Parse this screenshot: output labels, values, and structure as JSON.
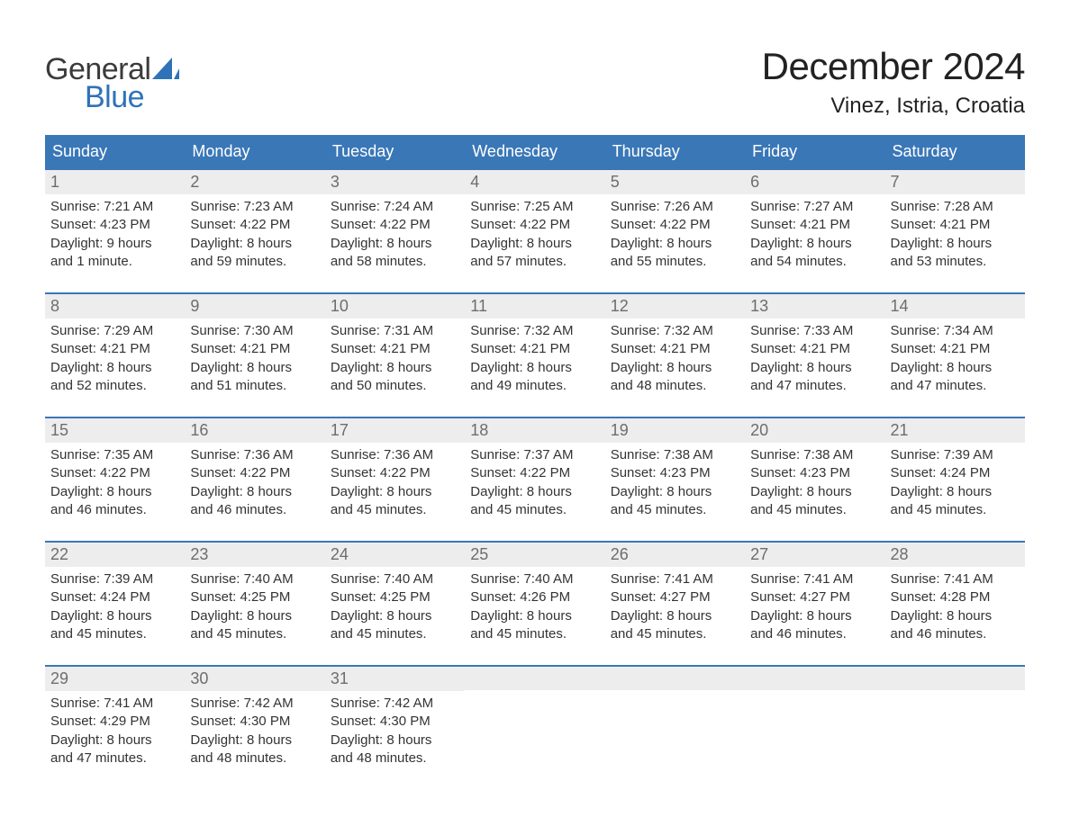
{
  "brand": {
    "word1": "General",
    "word2": "Blue"
  },
  "title": "December 2024",
  "location": "Vinez, Istria, Croatia",
  "colors": {
    "header_bg": "#3a77b7",
    "header_text": "#ffffff",
    "daynum_bg": "#ededed",
    "daynum_text": "#6d6d6d",
    "body_text": "#333333",
    "week_border": "#3a77b7",
    "page_bg": "#ffffff",
    "logo_grey": "#3b3b3b",
    "logo_blue": "#2f72b8"
  },
  "typography": {
    "title_fontsize": 42,
    "location_fontsize": 24,
    "weekday_fontsize": 18,
    "daynum_fontsize": 18,
    "body_fontsize": 15,
    "logo_fontsize": 34
  },
  "weekdays": [
    "Sunday",
    "Monday",
    "Tuesday",
    "Wednesday",
    "Thursday",
    "Friday",
    "Saturday"
  ],
  "weeks": [
    [
      {
        "n": "1",
        "sunrise": "Sunrise: 7:21 AM",
        "sunset": "Sunset: 4:23 PM",
        "d1": "Daylight: 9 hours",
        "d2": "and 1 minute."
      },
      {
        "n": "2",
        "sunrise": "Sunrise: 7:23 AM",
        "sunset": "Sunset: 4:22 PM",
        "d1": "Daylight: 8 hours",
        "d2": "and 59 minutes."
      },
      {
        "n": "3",
        "sunrise": "Sunrise: 7:24 AM",
        "sunset": "Sunset: 4:22 PM",
        "d1": "Daylight: 8 hours",
        "d2": "and 58 minutes."
      },
      {
        "n": "4",
        "sunrise": "Sunrise: 7:25 AM",
        "sunset": "Sunset: 4:22 PM",
        "d1": "Daylight: 8 hours",
        "d2": "and 57 minutes."
      },
      {
        "n": "5",
        "sunrise": "Sunrise: 7:26 AM",
        "sunset": "Sunset: 4:22 PM",
        "d1": "Daylight: 8 hours",
        "d2": "and 55 minutes."
      },
      {
        "n": "6",
        "sunrise": "Sunrise: 7:27 AM",
        "sunset": "Sunset: 4:21 PM",
        "d1": "Daylight: 8 hours",
        "d2": "and 54 minutes."
      },
      {
        "n": "7",
        "sunrise": "Sunrise: 7:28 AM",
        "sunset": "Sunset: 4:21 PM",
        "d1": "Daylight: 8 hours",
        "d2": "and 53 minutes."
      }
    ],
    [
      {
        "n": "8",
        "sunrise": "Sunrise: 7:29 AM",
        "sunset": "Sunset: 4:21 PM",
        "d1": "Daylight: 8 hours",
        "d2": "and 52 minutes."
      },
      {
        "n": "9",
        "sunrise": "Sunrise: 7:30 AM",
        "sunset": "Sunset: 4:21 PM",
        "d1": "Daylight: 8 hours",
        "d2": "and 51 minutes."
      },
      {
        "n": "10",
        "sunrise": "Sunrise: 7:31 AM",
        "sunset": "Sunset: 4:21 PM",
        "d1": "Daylight: 8 hours",
        "d2": "and 50 minutes."
      },
      {
        "n": "11",
        "sunrise": "Sunrise: 7:32 AM",
        "sunset": "Sunset: 4:21 PM",
        "d1": "Daylight: 8 hours",
        "d2": "and 49 minutes."
      },
      {
        "n": "12",
        "sunrise": "Sunrise: 7:32 AM",
        "sunset": "Sunset: 4:21 PM",
        "d1": "Daylight: 8 hours",
        "d2": "and 48 minutes."
      },
      {
        "n": "13",
        "sunrise": "Sunrise: 7:33 AM",
        "sunset": "Sunset: 4:21 PM",
        "d1": "Daylight: 8 hours",
        "d2": "and 47 minutes."
      },
      {
        "n": "14",
        "sunrise": "Sunrise: 7:34 AM",
        "sunset": "Sunset: 4:21 PM",
        "d1": "Daylight: 8 hours",
        "d2": "and 47 minutes."
      }
    ],
    [
      {
        "n": "15",
        "sunrise": "Sunrise: 7:35 AM",
        "sunset": "Sunset: 4:22 PM",
        "d1": "Daylight: 8 hours",
        "d2": "and 46 minutes."
      },
      {
        "n": "16",
        "sunrise": "Sunrise: 7:36 AM",
        "sunset": "Sunset: 4:22 PM",
        "d1": "Daylight: 8 hours",
        "d2": "and 46 minutes."
      },
      {
        "n": "17",
        "sunrise": "Sunrise: 7:36 AM",
        "sunset": "Sunset: 4:22 PM",
        "d1": "Daylight: 8 hours",
        "d2": "and 45 minutes."
      },
      {
        "n": "18",
        "sunrise": "Sunrise: 7:37 AM",
        "sunset": "Sunset: 4:22 PM",
        "d1": "Daylight: 8 hours",
        "d2": "and 45 minutes."
      },
      {
        "n": "19",
        "sunrise": "Sunrise: 7:38 AM",
        "sunset": "Sunset: 4:23 PM",
        "d1": "Daylight: 8 hours",
        "d2": "and 45 minutes."
      },
      {
        "n": "20",
        "sunrise": "Sunrise: 7:38 AM",
        "sunset": "Sunset: 4:23 PM",
        "d1": "Daylight: 8 hours",
        "d2": "and 45 minutes."
      },
      {
        "n": "21",
        "sunrise": "Sunrise: 7:39 AM",
        "sunset": "Sunset: 4:24 PM",
        "d1": "Daylight: 8 hours",
        "d2": "and 45 minutes."
      }
    ],
    [
      {
        "n": "22",
        "sunrise": "Sunrise: 7:39 AM",
        "sunset": "Sunset: 4:24 PM",
        "d1": "Daylight: 8 hours",
        "d2": "and 45 minutes."
      },
      {
        "n": "23",
        "sunrise": "Sunrise: 7:40 AM",
        "sunset": "Sunset: 4:25 PM",
        "d1": "Daylight: 8 hours",
        "d2": "and 45 minutes."
      },
      {
        "n": "24",
        "sunrise": "Sunrise: 7:40 AM",
        "sunset": "Sunset: 4:25 PM",
        "d1": "Daylight: 8 hours",
        "d2": "and 45 minutes."
      },
      {
        "n": "25",
        "sunrise": "Sunrise: 7:40 AM",
        "sunset": "Sunset: 4:26 PM",
        "d1": "Daylight: 8 hours",
        "d2": "and 45 minutes."
      },
      {
        "n": "26",
        "sunrise": "Sunrise: 7:41 AM",
        "sunset": "Sunset: 4:27 PM",
        "d1": "Daylight: 8 hours",
        "d2": "and 45 minutes."
      },
      {
        "n": "27",
        "sunrise": "Sunrise: 7:41 AM",
        "sunset": "Sunset: 4:27 PM",
        "d1": "Daylight: 8 hours",
        "d2": "and 46 minutes."
      },
      {
        "n": "28",
        "sunrise": "Sunrise: 7:41 AM",
        "sunset": "Sunset: 4:28 PM",
        "d1": "Daylight: 8 hours",
        "d2": "and 46 minutes."
      }
    ],
    [
      {
        "n": "29",
        "sunrise": "Sunrise: 7:41 AM",
        "sunset": "Sunset: 4:29 PM",
        "d1": "Daylight: 8 hours",
        "d2": "and 47 minutes."
      },
      {
        "n": "30",
        "sunrise": "Sunrise: 7:42 AM",
        "sunset": "Sunset: 4:30 PM",
        "d1": "Daylight: 8 hours",
        "d2": "and 48 minutes."
      },
      {
        "n": "31",
        "sunrise": "Sunrise: 7:42 AM",
        "sunset": "Sunset: 4:30 PM",
        "d1": "Daylight: 8 hours",
        "d2": "and 48 minutes."
      },
      {
        "empty": true
      },
      {
        "empty": true
      },
      {
        "empty": true
      },
      {
        "empty": true
      }
    ]
  ]
}
